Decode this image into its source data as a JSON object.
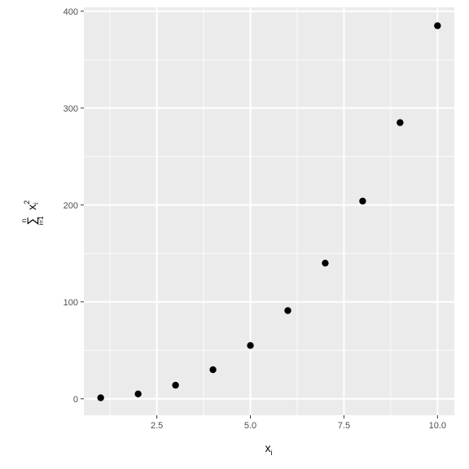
{
  "chart_data": {
    "type": "scatter",
    "x": [
      1,
      2,
      3,
      4,
      5,
      6,
      7,
      8,
      9,
      10
    ],
    "y": [
      1,
      5,
      14,
      30,
      55,
      91,
      140,
      204,
      285,
      385
    ],
    "xlim": [
      0.55,
      10.45
    ],
    "ylim": [
      -17,
      404
    ],
    "x_ticks": [
      2.5,
      5.0,
      7.5,
      10.0
    ],
    "x_tick_labels": [
      "2.5",
      "5.0",
      "7.5",
      "10.0"
    ],
    "y_ticks": [
      0,
      100,
      200,
      300,
      400
    ],
    "y_tick_labels": [
      "0",
      "100",
      "200",
      "300",
      "400"
    ],
    "xlabel": {
      "base": "x",
      "subscript": "i"
    },
    "ylabel": {
      "sum_symbol": "∑",
      "upper_limit": "n",
      "lower_limit": "i=1",
      "base": "x",
      "subscript": "i",
      "superscript": "2"
    },
    "grid": true,
    "legend": "none",
    "colors": {
      "panel_background": "#ebebeb",
      "grid_line": "#ffffff",
      "point": "#000000",
      "tick_label": "#4d4d4d",
      "axis_title": "#000000"
    }
  }
}
